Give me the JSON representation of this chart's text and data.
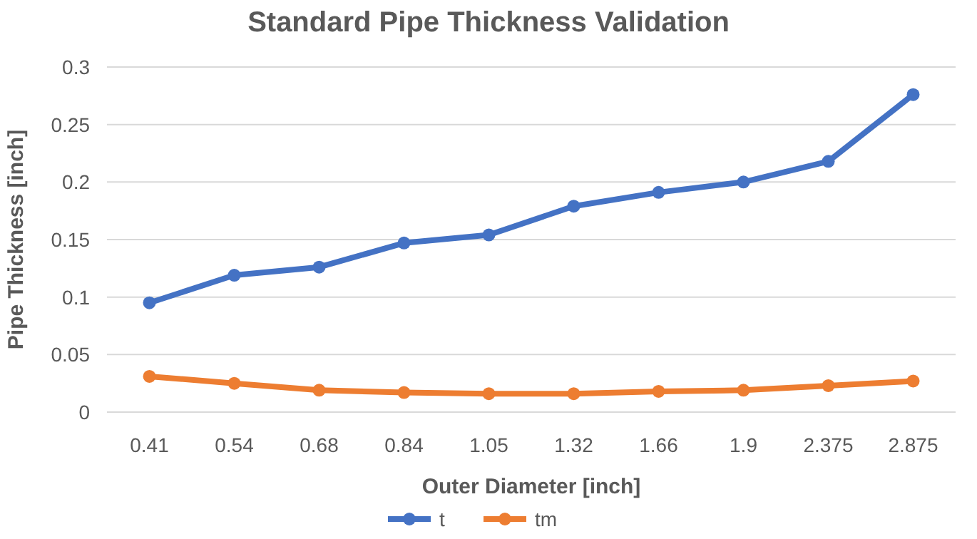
{
  "chart_data": {
    "type": "line",
    "title": "Standard Pipe Thickness Validation",
    "xlabel": "Outer Diameter [inch]",
    "ylabel": "Pipe Thickness [inch]",
    "categories": [
      "0.41",
      "0.54",
      "0.68",
      "0.84",
      "1.05",
      "1.32",
      "1.66",
      "1.9",
      "2.375",
      "2.875"
    ],
    "series": [
      {
        "name": "t",
        "color": "#4472c4",
        "values": [
          0.095,
          0.119,
          0.126,
          0.147,
          0.154,
          0.179,
          0.191,
          0.2,
          0.218,
          0.276
        ]
      },
      {
        "name": "tm",
        "color": "#ed7d31",
        "values": [
          0.031,
          0.025,
          0.019,
          0.017,
          0.016,
          0.016,
          0.018,
          0.019,
          0.023,
          0.027
        ]
      }
    ],
    "ylim": [
      0,
      0.3
    ],
    "yticks": [
      0,
      0.05,
      0.1,
      0.15,
      0.2,
      0.25,
      0.3
    ],
    "grid": "y",
    "legend": "bottom",
    "marker": "circle",
    "line_style": "solid"
  }
}
